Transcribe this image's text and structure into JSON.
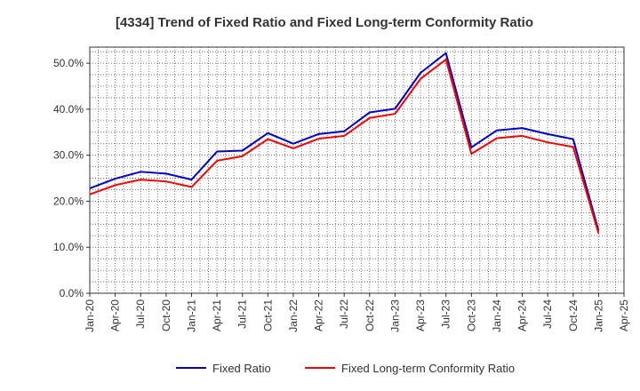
{
  "chart_data": {
    "type": "line",
    "title": "[4334]  Trend of Fixed Ratio and Fixed Long-term Conformity Ratio",
    "xlabel": "",
    "ylabel": "",
    "x_tick_labels": [
      "Jan-20",
      "Apr-20",
      "Jul-20",
      "Oct-20",
      "Jan-21",
      "Apr-21",
      "Jul-21",
      "Oct-21",
      "Jan-22",
      "Apr-22",
      "Jul-22",
      "Oct-22",
      "Jan-23",
      "Apr-23",
      "Jul-23",
      "Oct-23",
      "Jan-24",
      "Apr-24",
      "Jul-24",
      "Oct-24",
      "Jan-25",
      "Apr-25"
    ],
    "y_tick_labels": [
      "0.0%",
      "10.0%",
      "20.0%",
      "30.0%",
      "40.0%",
      "50.0%"
    ],
    "y_ticks": [
      0,
      10,
      20,
      30,
      40,
      50
    ],
    "ylim": [
      0,
      53.5
    ],
    "grid": true,
    "legend_position": "bottom",
    "x": [
      "Jan-20",
      "Apr-20",
      "Jul-20",
      "Oct-20",
      "Jan-21",
      "Apr-21",
      "Jul-21",
      "Oct-21",
      "Jan-22",
      "Apr-22",
      "Jul-22",
      "Oct-22",
      "Jan-23",
      "Apr-23",
      "Jul-23",
      "Oct-23",
      "Jan-24",
      "Apr-24",
      "Jul-24",
      "Oct-24",
      "Jan-25"
    ],
    "series": [
      {
        "name": "Fixed Ratio",
        "color": "#0000cc",
        "values": [
          22.8,
          24.9,
          26.4,
          26.0,
          24.7,
          30.8,
          31.0,
          34.8,
          32.5,
          34.6,
          35.2,
          39.3,
          40.1,
          47.9,
          52.2,
          31.7,
          35.4,
          35.9,
          34.6,
          33.5,
          13.6
        ]
      },
      {
        "name": "Fixed Long-term Conformity Ratio",
        "color": "#ff0000",
        "values": [
          21.5,
          23.5,
          24.7,
          24.3,
          23.1,
          28.8,
          29.8,
          33.5,
          31.5,
          33.6,
          34.2,
          38.1,
          39.0,
          46.6,
          50.8,
          30.3,
          33.7,
          34.2,
          32.8,
          31.8,
          13.0
        ]
      }
    ]
  }
}
